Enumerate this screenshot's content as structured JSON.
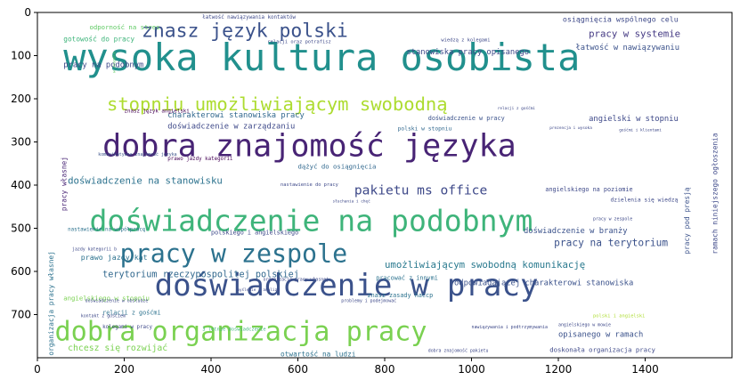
{
  "chart_data": {
    "type": "other",
    "title": "",
    "xlabel": "",
    "ylabel": "",
    "xlim": [
      0,
      1600
    ],
    "ylim": [
      800,
      0
    ],
    "x_ticks": [
      0,
      200,
      400,
      600,
      800,
      1000,
      1200,
      1400
    ],
    "y_ticks": [
      0,
      100,
      200,
      300,
      400,
      500,
      600,
      700
    ],
    "words": [
      {
        "text": "wysoka kultura osobista",
        "x": 60,
        "y": 70,
        "size": 86,
        "color": "#21908d",
        "rotate": 0
      },
      {
        "text": "dobra znajomość języka",
        "x": 150,
        "y": 280,
        "size": 72,
        "color": "#482475",
        "rotate": 0
      },
      {
        "text": "doświadczenie na podobnym",
        "x": 120,
        "y": 455,
        "size": 68,
        "color": "#3eb47a",
        "rotate": 0
      },
      {
        "text": "doświadczenie w pracy",
        "x": 270,
        "y": 605,
        "size": 70,
        "color": "#3b528b",
        "rotate": 0
      },
      {
        "text": "dobra organizacja pracy",
        "x": 40,
        "y": 715,
        "size": 62,
        "color": "#7ad151",
        "rotate": 0
      },
      {
        "text": "pracy w zespole",
        "x": 190,
        "y": 535,
        "size": 58,
        "color": "#2c728e",
        "rotate": 0
      },
      {
        "text": "stopniu umożliwiającym swobodną",
        "x": 160,
        "y": 195,
        "size": 42,
        "color": "#addc30",
        "rotate": 0
      },
      {
        "text": "znasz język polski",
        "x": 240,
        "y": 25,
        "size": 44,
        "color": "#3b528b",
        "rotate": 0
      },
      {
        "text": "pakietu ms office",
        "x": 730,
        "y": 400,
        "size": 30,
        "color": "#3e4989",
        "rotate": 0
      },
      {
        "text": "doświadczenie na stanowisku",
        "x": 70,
        "y": 380,
        "size": 22,
        "color": "#2c728e",
        "rotate": 0
      },
      {
        "text": "terytorium rzeczypospolitej polskiej",
        "x": 150,
        "y": 600,
        "size": 21,
        "color": "#31688e",
        "rotate": 0
      },
      {
        "text": "umożliwiającym swobodną komunikację",
        "x": 800,
        "y": 575,
        "size": 22,
        "color": "#29798e",
        "rotate": 0
      },
      {
        "text": "pracy na terytorium",
        "x": 1190,
        "y": 525,
        "size": 23,
        "color": "#3b528b",
        "rotate": 0
      },
      {
        "text": "doświadczenie w zarządzaniu",
        "x": 300,
        "y": 258,
        "size": 18,
        "color": "#3e4989",
        "rotate": 0
      },
      {
        "text": "charakterowi stanowiska pracy",
        "x": 300,
        "y": 232,
        "size": 18,
        "color": "#31688e",
        "rotate": 0
      },
      {
        "text": "prawo jazdy kategorii",
        "x": 300,
        "y": 336,
        "size": 12,
        "color": "#440154",
        "rotate": 0
      },
      {
        "text": "stanowiska pracy opisanego",
        "x": 850,
        "y": 85,
        "size": 18,
        "color": "#3e4989",
        "rotate": 0
      },
      {
        "text": "pracy w systemie",
        "x": 1270,
        "y": 40,
        "size": 22,
        "color": "#443983",
        "rotate": 0
      },
      {
        "text": "łatwość w nawiązywaniu",
        "x": 1240,
        "y": 75,
        "size": 18,
        "color": "#3b528b",
        "rotate": 0
      },
      {
        "text": "pracy na podobnym",
        "x": 60,
        "y": 115,
        "size": 18,
        "color": "#3e4989",
        "rotate": 0
      },
      {
        "text": "angielski w stopniu",
        "x": 1270,
        "y": 240,
        "size": 18,
        "color": "#3e4989",
        "rotate": 0
      },
      {
        "text": "doświadczenie w branży",
        "x": 1120,
        "y": 500,
        "size": 18,
        "color": "#3b528b",
        "rotate": 0
      },
      {
        "text": "odpowiadającej charakterowi stanowiska",
        "x": 960,
        "y": 620,
        "size": 18,
        "color": "#3b528b",
        "rotate": 0
      },
      {
        "text": "opisanego w ramach",
        "x": 1200,
        "y": 740,
        "size": 18,
        "color": "#3b528b",
        "rotate": 0
      },
      {
        "text": "chcesz się rozwijać",
        "x": 70,
        "y": 770,
        "size": 20,
        "color": "#7ad151",
        "rotate": 0
      },
      {
        "text": "otwartość na ludzi",
        "x": 560,
        "y": 785,
        "size": 16,
        "color": "#2c728e",
        "rotate": 0
      },
      {
        "text": "doskonała organizacja pracy",
        "x": 1180,
        "y": 775,
        "size": 15,
        "color": "#3e4989",
        "rotate": 0
      },
      {
        "text": "polskiego i angielskiego",
        "x": 400,
        "y": 505,
        "size": 14,
        "color": "#3e4989",
        "rotate": 0
      },
      {
        "text": "prawo jazdy kat",
        "x": 100,
        "y": 560,
        "size": 17,
        "color": "#2c728e",
        "rotate": 0
      },
      {
        "text": "angielskiego w stopniu",
        "x": 60,
        "y": 655,
        "size": 15,
        "color": "#7ad151",
        "rotate": 0
      },
      {
        "text": "dążyć do osiągnięcia",
        "x": 600,
        "y": 350,
        "size": 15,
        "color": "#31688e",
        "rotate": 0
      },
      {
        "text": "osiągnięcia wspólnego celu",
        "x": 1210,
        "y": 8,
        "size": 17,
        "color": "#3e4989",
        "rotate": 0
      },
      {
        "text": "nastawienie na współpracę",
        "x": 70,
        "y": 500,
        "size": 12,
        "color": "#2c728e",
        "rotate": 0
      },
      {
        "text": "angielskiego na poziomie",
        "x": 1170,
        "y": 405,
        "size": 14,
        "color": "#3e4989",
        "rotate": 0
      },
      {
        "text": "doświadczenie w pracy",
        "x": 900,
        "y": 240,
        "size": 14,
        "color": "#3b528b",
        "rotate": 0
      },
      {
        "text": "znasz język angielski",
        "x": 200,
        "y": 225,
        "size": 12,
        "color": "#440154",
        "rotate": 0
      },
      {
        "text": "znasz zasady haccp",
        "x": 760,
        "y": 650,
        "size": 14,
        "color": "#2c728e",
        "rotate": 0
      },
      {
        "text": "pracować z innymi",
        "x": 780,
        "y": 610,
        "size": 14,
        "color": "#2c728e",
        "rotate": 0
      },
      {
        "text": "polski w stopniu",
        "x": 830,
        "y": 265,
        "size": 13,
        "color": "#31688e",
        "rotate": 0
      },
      {
        "text": "gotowość do pracy",
        "x": 60,
        "y": 55,
        "size": 16,
        "color": "#3eb47a",
        "rotate": 0
      },
      {
        "text": "odporność na stres",
        "x": 120,
        "y": 28,
        "size": 15,
        "color": "#5ec962",
        "rotate": 0
      },
      {
        "text": "łatwość nawiązywania kontaktów",
        "x": 380,
        "y": 8,
        "size": 12,
        "color": "#3e4989",
        "rotate": 0
      },
      {
        "text": "relacji z gośćmi",
        "x": 150,
        "y": 690,
        "size": 14,
        "color": "#2c728e",
        "rotate": 0
      },
      {
        "text": "kolegami w pracy",
        "x": 150,
        "y": 725,
        "size": 12,
        "color": "#3e4989",
        "rotate": 0
      },
      {
        "text": "dzielenia się wiedzą",
        "x": 1320,
        "y": 430,
        "size": 13,
        "color": "#3e4989",
        "rotate": 0
      },
      {
        "text": "organizacja pracy własnej",
        "x": 25,
        "y": 795,
        "size": 16,
        "color": "#2c728e",
        "rotate": -90
      },
      {
        "text": "pracy pod presją",
        "x": 1490,
        "y": 560,
        "size": 16,
        "color": "#3b528b",
        "rotate": -90
      },
      {
        "text": "ramach niniejszego ogłoszenia",
        "x": 1555,
        "y": 560,
        "size": 16,
        "color": "#3e4989",
        "rotate": -90
      },
      {
        "text": "pracy własnej",
        "x": 55,
        "y": 460,
        "size": 16,
        "color": "#482475",
        "rotate": -90
      },
      {
        "text": "w zespole",
        "x": 175,
        "y": 140,
        "size": 9,
        "color": "#5ec962",
        "rotate": -90
      },
      {
        "text": "komunikatywna znajomość języka",
        "x": 140,
        "y": 325,
        "size": 10,
        "color": "#3b528b",
        "rotate": 0
      },
      {
        "text": "kontakt z gościem",
        "x": 100,
        "y": 700,
        "size": 10,
        "color": "#3e4989",
        "rotate": 0
      },
      {
        "text": "dobra znajomość pakietu",
        "x": 900,
        "y": 780,
        "size": 10,
        "color": "#3e4989",
        "rotate": 0
      },
      {
        "text": "polski i angielski",
        "x": 1280,
        "y": 700,
        "size": 11,
        "color": "#addc30",
        "rotate": 0
      },
      {
        "text": "angielskiego w mowie",
        "x": 1200,
        "y": 720,
        "size": 10,
        "color": "#3e4989",
        "rotate": 0
      },
      {
        "text": "pracy w zespole",
        "x": 1280,
        "y": 475,
        "size": 10,
        "color": "#3e4989",
        "rotate": 0
      },
      {
        "text": "relacji oraz potrafisz",
        "x": 530,
        "y": 65,
        "size": 11,
        "color": "#3e4989",
        "rotate": 0
      },
      {
        "text": "wiedzą z kolegami",
        "x": 930,
        "y": 60,
        "size": 11,
        "color": "#3e4989",
        "rotate": 0
      },
      {
        "text": "nastawienie do pracy",
        "x": 560,
        "y": 395,
        "size": 11,
        "color": "#3e4989",
        "rotate": 0
      },
      {
        "text": "3 letnie doświadczenie",
        "x": 380,
        "y": 730,
        "size": 11,
        "color": "#3eb47a",
        "rotate": 0
      },
      {
        "text": "nawiązywania i podtrzymywania",
        "x": 1000,
        "y": 725,
        "size": 10,
        "color": "#3e4989",
        "rotate": 0
      },
      {
        "text": "doświadczenie w obsłudze",
        "x": 110,
        "y": 665,
        "size": 10,
        "color": "#3e4989",
        "rotate": 0
      },
      {
        "text": "organizacja pracy własnej",
        "x": 520,
        "y": 615,
        "size": 10,
        "color": "#3e4989",
        "rotate": 0
      },
      {
        "text": "gośćmi i klientami",
        "x": 1340,
        "y": 270,
        "size": 9,
        "color": "#3e4989",
        "rotate": 0
      },
      {
        "text": "prezencja i wysoka",
        "x": 1180,
        "y": 265,
        "size": 9,
        "color": "#3e4989",
        "rotate": 0
      },
      {
        "text": "relacji z gośćmi",
        "x": 1060,
        "y": 220,
        "size": 9,
        "color": "#3e4989",
        "rotate": 0
      },
      {
        "text": "słuchania i chęć",
        "x": 680,
        "y": 435,
        "size": 9,
        "color": "#3e4989",
        "rotate": 0
      },
      {
        "text": "jazdy kategorii b",
        "x": 80,
        "y": 545,
        "size": 10,
        "color": "#3e4989",
        "rotate": 0
      },
      {
        "text": "problemy i podejmować",
        "x": 700,
        "y": 665,
        "size": 10,
        "color": "#3e4989",
        "rotate": 0
      },
      {
        "text": "myślenie i analiza",
        "x": 460,
        "y": 640,
        "size": 9,
        "color": "#3e4989",
        "rotate": 0
      }
    ]
  }
}
